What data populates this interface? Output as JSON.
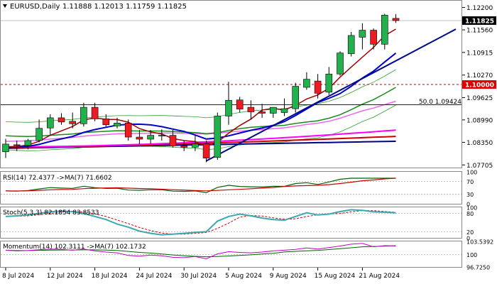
{
  "header": {
    "symbol_tf": "EURUSD,Daily",
    "ohlc": "1.11888 1.12013 1.11759 1.11825"
  },
  "price_axis": {
    "labels": [
      "1.12200",
      "1.11560",
      "1.10915",
      "1.10270",
      "1.09625",
      "1.08990",
      "1.08350",
      "1.07705"
    ],
    "current_price": "1.11825",
    "level_100": "1.10000",
    "fib_label": "50.0 1.09424"
  },
  "rsi": {
    "header": "RSI(14) 72.4377 ->MA(7) 71.6602",
    "axis_labels": [
      "100",
      "70",
      "30",
      "0"
    ]
  },
  "stoch": {
    "header": "Stoch(5,3,3) 82.1854 83.8533",
    "axis_labels": [
      "100",
      "80",
      "20",
      "0"
    ]
  },
  "momentum": {
    "header": "Momentum(14) 102.3111 ->MA(7) 102.1732",
    "axis_labels": [
      "103.5392",
      "100",
      "96.7250"
    ]
  },
  "time_axis": [
    "8 Jul 2024",
    "12 Jul 2024",
    "18 Jul 2024",
    "24 Jul 2024",
    "30 Jul 2024",
    "5 Aug 2024",
    "9 Aug 2024",
    "15 Aug 2024",
    "21 Aug 2024"
  ],
  "colors": {
    "bull": "#22b14c",
    "bear": "#ed1c24",
    "ma_navy": "#000080",
    "ma_red": "#cc0000",
    "ma_magenta": "#ff00ff",
    "ma_green": "#1a8a1a",
    "boll": "#2ca02c",
    "stoch_main": "#3aa9b0",
    "stoch_signal": "#cc0000"
  },
  "chart_data": {
    "type": "candlestick",
    "symbol": "EURUSD",
    "timeframe": "Daily",
    "x": [
      "8 Jul 2024",
      "9 Jul 2024",
      "10 Jul 2024",
      "11 Jul 2024",
      "12 Jul 2024",
      "15 Jul 2024",
      "16 Jul 2024",
      "17 Jul 2024",
      "18 Jul 2024",
      "19 Jul 2024",
      "22 Jul 2024",
      "23 Jul 2024",
      "24 Jul 2024",
      "25 Jul 2024",
      "26 Jul 2024",
      "29 Jul 2024",
      "30 Jul 2024",
      "31 Jul 2024",
      "1 Aug 2024",
      "2 Aug 2024",
      "5 Aug 2024",
      "6 Aug 2024",
      "7 Aug 2024",
      "8 Aug 2024",
      "9 Aug 2024",
      "12 Aug 2024",
      "13 Aug 2024",
      "14 Aug 2024",
      "15 Aug 2024",
      "16 Aug 2024",
      "19 Aug 2024",
      "20 Aug 2024",
      "21 Aug 2024",
      "22 Aug 2024",
      "23 Aug 2024",
      "26 Aug 2024"
    ],
    "candles": [
      [
        1.0808,
        1.0845,
        1.079,
        1.083
      ],
      [
        1.0828,
        1.084,
        1.081,
        1.0826
      ],
      [
        1.0826,
        1.0845,
        1.0815,
        1.084
      ],
      [
        1.084,
        1.09,
        1.0835,
        1.0875
      ],
      [
        1.0876,
        1.0915,
        1.0855,
        1.0905
      ],
      [
        1.0905,
        1.0918,
        1.0885,
        1.0893
      ],
      [
        1.0895,
        1.092,
        1.0875,
        1.0888
      ],
      [
        1.0888,
        1.0948,
        1.088,
        1.0935
      ],
      [
        1.0935,
        1.0948,
        1.0895,
        1.0902
      ],
      [
        1.0902,
        1.0915,
        1.088,
        1.0885
      ],
      [
        1.0882,
        1.0905,
        1.0875,
        1.089
      ],
      [
        1.089,
        1.09,
        1.084,
        1.085
      ],
      [
        1.085,
        1.087,
        1.083,
        1.0844
      ],
      [
        1.0844,
        1.087,
        1.083,
        1.0855
      ],
      [
        1.0855,
        1.0872,
        1.084,
        1.0855
      ],
      [
        1.0855,
        1.087,
        1.082,
        1.0825
      ],
      [
        1.0825,
        1.084,
        1.081,
        1.0821
      ],
      [
        1.0821,
        1.0855,
        1.081,
        1.083
      ],
      [
        1.083,
        1.084,
        1.0778,
        1.079
      ],
      [
        1.0792,
        1.092,
        1.0785,
        1.091
      ],
      [
        1.091,
        1.1008,
        1.0885,
        1.0955
      ],
      [
        1.0956,
        1.0965,
        1.092,
        1.093
      ],
      [
        1.0935,
        1.0955,
        1.09,
        1.0922
      ],
      [
        1.0922,
        1.0945,
        1.0905,
        1.0918
      ],
      [
        1.0918,
        1.0935,
        1.0905,
        1.0935
      ],
      [
        1.092,
        1.096,
        1.091,
        1.0931
      ],
      [
        1.0931,
        1.1005,
        1.092,
        1.0995
      ],
      [
        1.0992,
        1.1035,
        1.0985,
        1.1015
      ],
      [
        1.101,
        1.103,
        1.096,
        1.0975
      ],
      [
        1.0978,
        1.105,
        1.097,
        1.103
      ],
      [
        1.103,
        1.1095,
        1.1025,
        1.109
      ],
      [
        1.1088,
        1.115,
        1.108,
        1.114
      ],
      [
        1.1135,
        1.1175,
        1.11,
        1.1155
      ],
      [
        1.1155,
        1.116,
        1.11,
        1.1115
      ],
      [
        1.1115,
        1.1202,
        1.11,
        1.1198
      ],
      [
        1.11888,
        1.12013,
        1.11759,
        1.11825
      ]
    ],
    "levels": [
      {
        "label": "1.10000",
        "value": 1.1,
        "style": "dashed-red"
      },
      {
        "label": "50.0 1.09424",
        "value": 1.09424,
        "style": "solid-dark"
      }
    ],
    "ylim": [
      1.0765,
      1.1225
    ]
  }
}
